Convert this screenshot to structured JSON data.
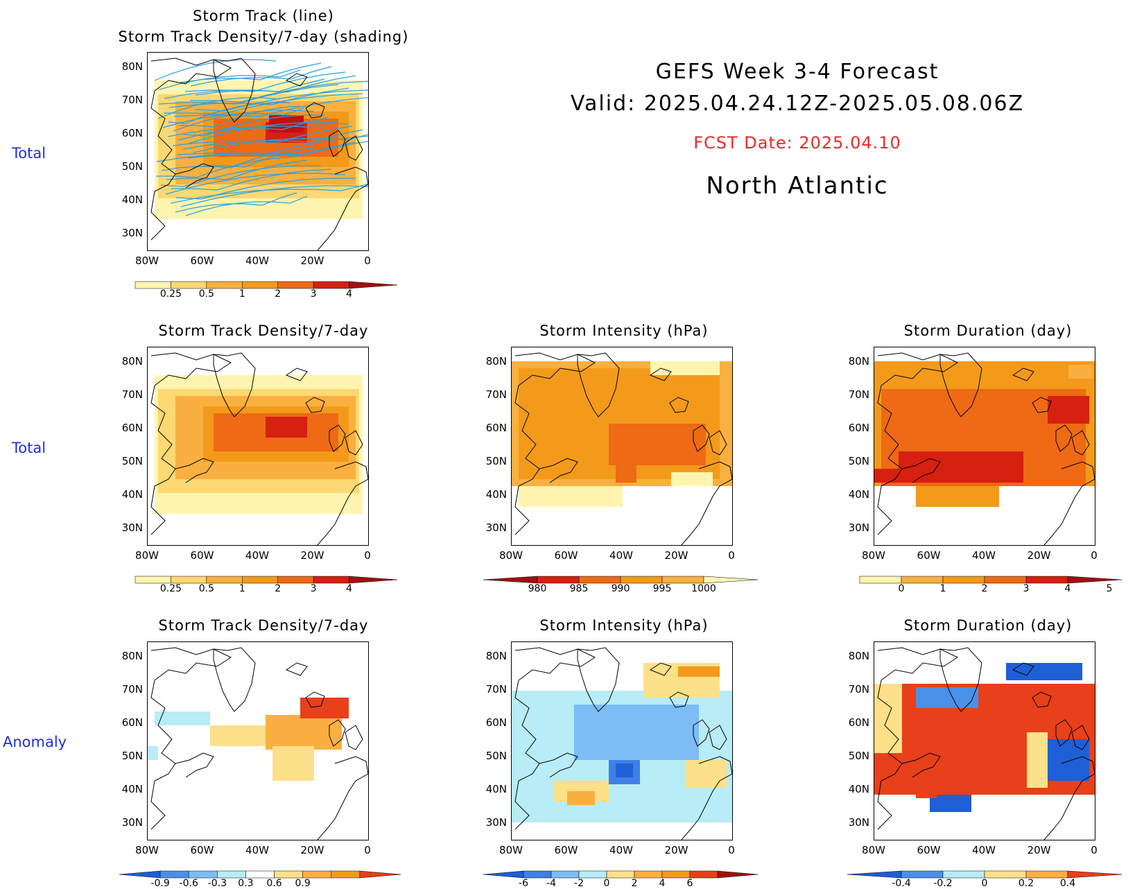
{
  "header": {
    "title_line1": "GEFS Week 3-4 Forecast",
    "title_line2": "Valid: 2025.04.24.12Z-2025.05.08.06Z",
    "fcst_date": "FCST Date: 2025.04.10",
    "region": "North Atlantic"
  },
  "row_labels": {
    "top": "Total",
    "middle": "Total",
    "bottom": "Anomaly"
  },
  "panels": {
    "track": {
      "title1": "Storm Track (line)",
      "title2": "Storm Track Density/7-day (shading)"
    },
    "density_total": {
      "title": "Storm Track Density/7-day"
    },
    "intensity_total": {
      "title": "Storm Intensity (hPa)"
    },
    "duration_total": {
      "title": "Storm Duration (day)"
    },
    "density_anom": {
      "title": "Storm Track Density/7-day"
    },
    "intensity_anom": {
      "title": "Storm Intensity (hPa)"
    },
    "duration_anom": {
      "title": "Storm Duration (day)"
    }
  },
  "axes": {
    "lat_labels": [
      "80N",
      "70N",
      "60N",
      "50N",
      "40N",
      "30N"
    ],
    "lon_labels": [
      "80W",
      "60W",
      "40W",
      "20W",
      "0"
    ]
  },
  "colorbars": {
    "density_total": {
      "labels": [
        "0.25",
        "0.5",
        "1",
        "2",
        "3",
        "4"
      ],
      "colors": [
        "#fff5b0",
        "#fdd873",
        "#f9b040",
        "#f39a1a",
        "#ee6a14",
        "#d62010",
        "#a01010"
      ]
    },
    "intensity_total": {
      "labels": [
        "980",
        "985",
        "990",
        "995",
        "1000"
      ],
      "colors": [
        "#a01010",
        "#d62010",
        "#ee6a14",
        "#f39a1a",
        "#f9b040",
        "#fff5b0"
      ]
    },
    "duration_total": {
      "labels": [
        "0",
        "1",
        "2",
        "3",
        "4",
        "5"
      ],
      "colors": [
        "#fff5b0",
        "#f9b040",
        "#f39a1a",
        "#ee6a14",
        "#d62010",
        "#a01010"
      ]
    },
    "density_anom": {
      "labels": [
        "-0.9",
        "-0.6",
        "-0.3",
        "0.3",
        "0.6",
        "0.9"
      ],
      "colors": [
        "#1f5fd6",
        "#4a90e8",
        "#7dbcf4",
        "#b8ecf6",
        "#ffffff",
        "#fde08a",
        "#f9b040",
        "#f39a1a",
        "#e8401a"
      ]
    },
    "intensity_anom": {
      "labels": [
        "-6",
        "-4",
        "-2",
        "0",
        "2",
        "4",
        "6"
      ],
      "colors": [
        "#1f5fd6",
        "#3f80e6",
        "#7dbcf4",
        "#b8ecf6",
        "#fde08a",
        "#f9b040",
        "#f39a1a",
        "#e8401a",
        "#a01010"
      ]
    },
    "duration_anom": {
      "labels": [
        "-0.4",
        "-0.2",
        "0",
        "0.2",
        "0.4"
      ],
      "colors": [
        "#1f5fd6",
        "#4a90e8",
        "#b8ecf6",
        "#fde08a",
        "#f9b040",
        "#e8401a"
      ]
    }
  }
}
